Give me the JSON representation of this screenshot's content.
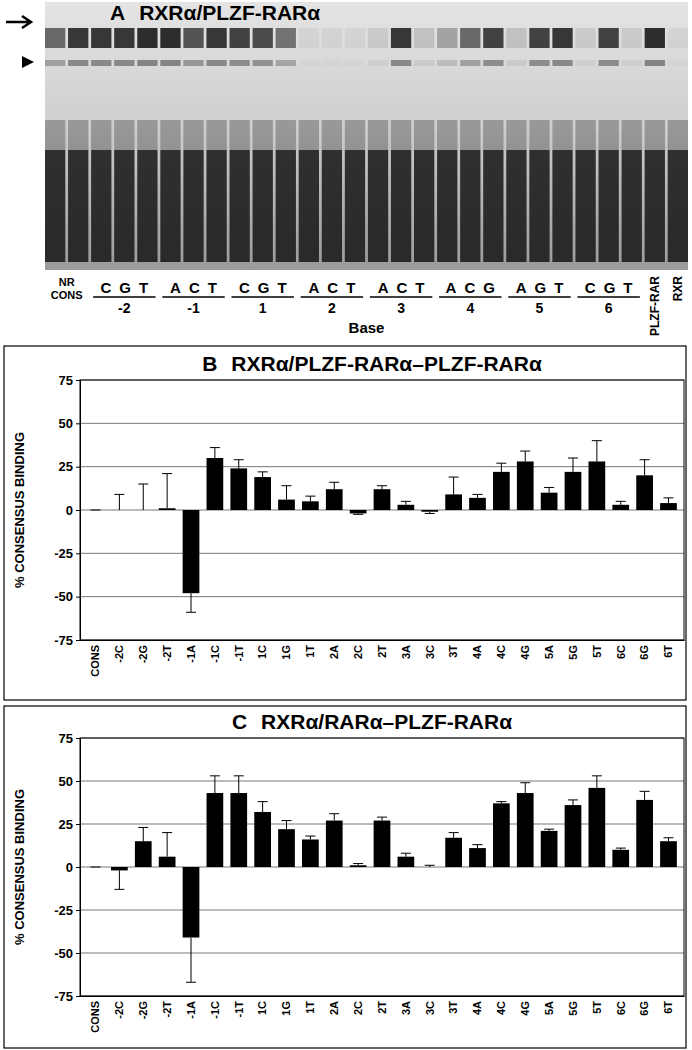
{
  "gel": {
    "panel": "A",
    "title": "RXRα/PLZF-RARα",
    "xlabel": "Base",
    "left_lanes": [
      {
        "label": "NR",
        "shift": 0.6
      },
      {
        "label": "CONS",
        "shift": 0.85
      }
    ],
    "groups": [
      {
        "bases": "CGT",
        "position": "-2",
        "shift": [
          0.85,
          0.85,
          0.9
        ]
      },
      {
        "bases": "ACT",
        "position": "-1",
        "shift": [
          0.9,
          0.7,
          0.85
        ]
      },
      {
        "bases": "CGT",
        "position": "1",
        "shift": [
          0.8,
          0.75,
          0.55
        ]
      },
      {
        "bases": "ACT",
        "position": "2",
        "shift": [
          0.05,
          0.05,
          0.05
        ]
      },
      {
        "bases": "ACT",
        "position": "3",
        "shift": [
          0.1,
          0.85,
          0.15
        ]
      },
      {
        "bases": "ACG",
        "position": "4",
        "shift": [
          0.3,
          0.6,
          0.8
        ]
      },
      {
        "bases": "AGT",
        "position": "5",
        "shift": [
          0.15,
          0.8,
          0.85
        ]
      },
      {
        "bases": "CGT",
        "position": "6",
        "shift": [
          0.1,
          0.8,
          0.1
        ]
      }
    ],
    "right_lanes": [
      {
        "label": "PLZF-RAR",
        "shift": 0.9
      },
      {
        "label": "RXR",
        "shift": 0.05
      }
    ]
  },
  "chart_data": [
    {
      "type": "bar",
      "panel": "B",
      "title": "RXRα/PLZF-RARα–PLZF-RARα",
      "categories": [
        "CONS",
        "-2C",
        "-2G",
        "-2T",
        "-1A",
        "-1C",
        "-1T",
        "1C",
        "1G",
        "1T",
        "2A",
        "2C",
        "2T",
        "3A",
        "3C",
        "3T",
        "4A",
        "4C",
        "4G",
        "5A",
        "5G",
        "5T",
        "6C",
        "6G",
        "6T"
      ],
      "values": [
        0,
        0,
        0,
        1,
        -48,
        30,
        24,
        19,
        6,
        5,
        12,
        -2,
        12,
        3,
        -1,
        9,
        7,
        22,
        28,
        10,
        22,
        28,
        3,
        20,
        4
      ],
      "errors": [
        0,
        9,
        15,
        20,
        11,
        6,
        5,
        3,
        8,
        3,
        4,
        0.5,
        2,
        2,
        1,
        10,
        2,
        5,
        6,
        3,
        8,
        12,
        2,
        9,
        3
      ],
      "color": "#000000",
      "ylabel": "% CONSENSUS BINDING",
      "ylim": [
        -75,
        75
      ],
      "yticks": [
        -75,
        -50,
        -25,
        0,
        25,
        50,
        75
      ],
      "grid": true
    },
    {
      "type": "bar",
      "panel": "C",
      "title": "RXRα/RARα–PLZF-RARα",
      "categories": [
        "CONS",
        "-2C",
        "-2G",
        "-2T",
        "-1A",
        "-1C",
        "-1T",
        "1C",
        "1G",
        "1T",
        "2A",
        "2C",
        "2T",
        "3A",
        "3C",
        "3T",
        "4A",
        "4C",
        "4G",
        "5A",
        "5G",
        "5T",
        "6C",
        "6G",
        "6T"
      ],
      "values": [
        0,
        -2,
        15,
        6,
        -41,
        43,
        43,
        32,
        22,
        16,
        27,
        1,
        27,
        6,
        0,
        17,
        11,
        37,
        43,
        21,
        36,
        46,
        10,
        39,
        15
      ],
      "errors": [
        0,
        11,
        8,
        14,
        26,
        10,
        10,
        6,
        5,
        2,
        4,
        1,
        2,
        2,
        1,
        3,
        2,
        1,
        6,
        1,
        3,
        7,
        1,
        5,
        2
      ],
      "color": "#000000",
      "ylabel": "% CONSENSUS BINDING",
      "ylim": [
        -75,
        75
      ],
      "yticks": [
        -75,
        -50,
        -25,
        0,
        25,
        50,
        75
      ],
      "grid": true
    }
  ]
}
